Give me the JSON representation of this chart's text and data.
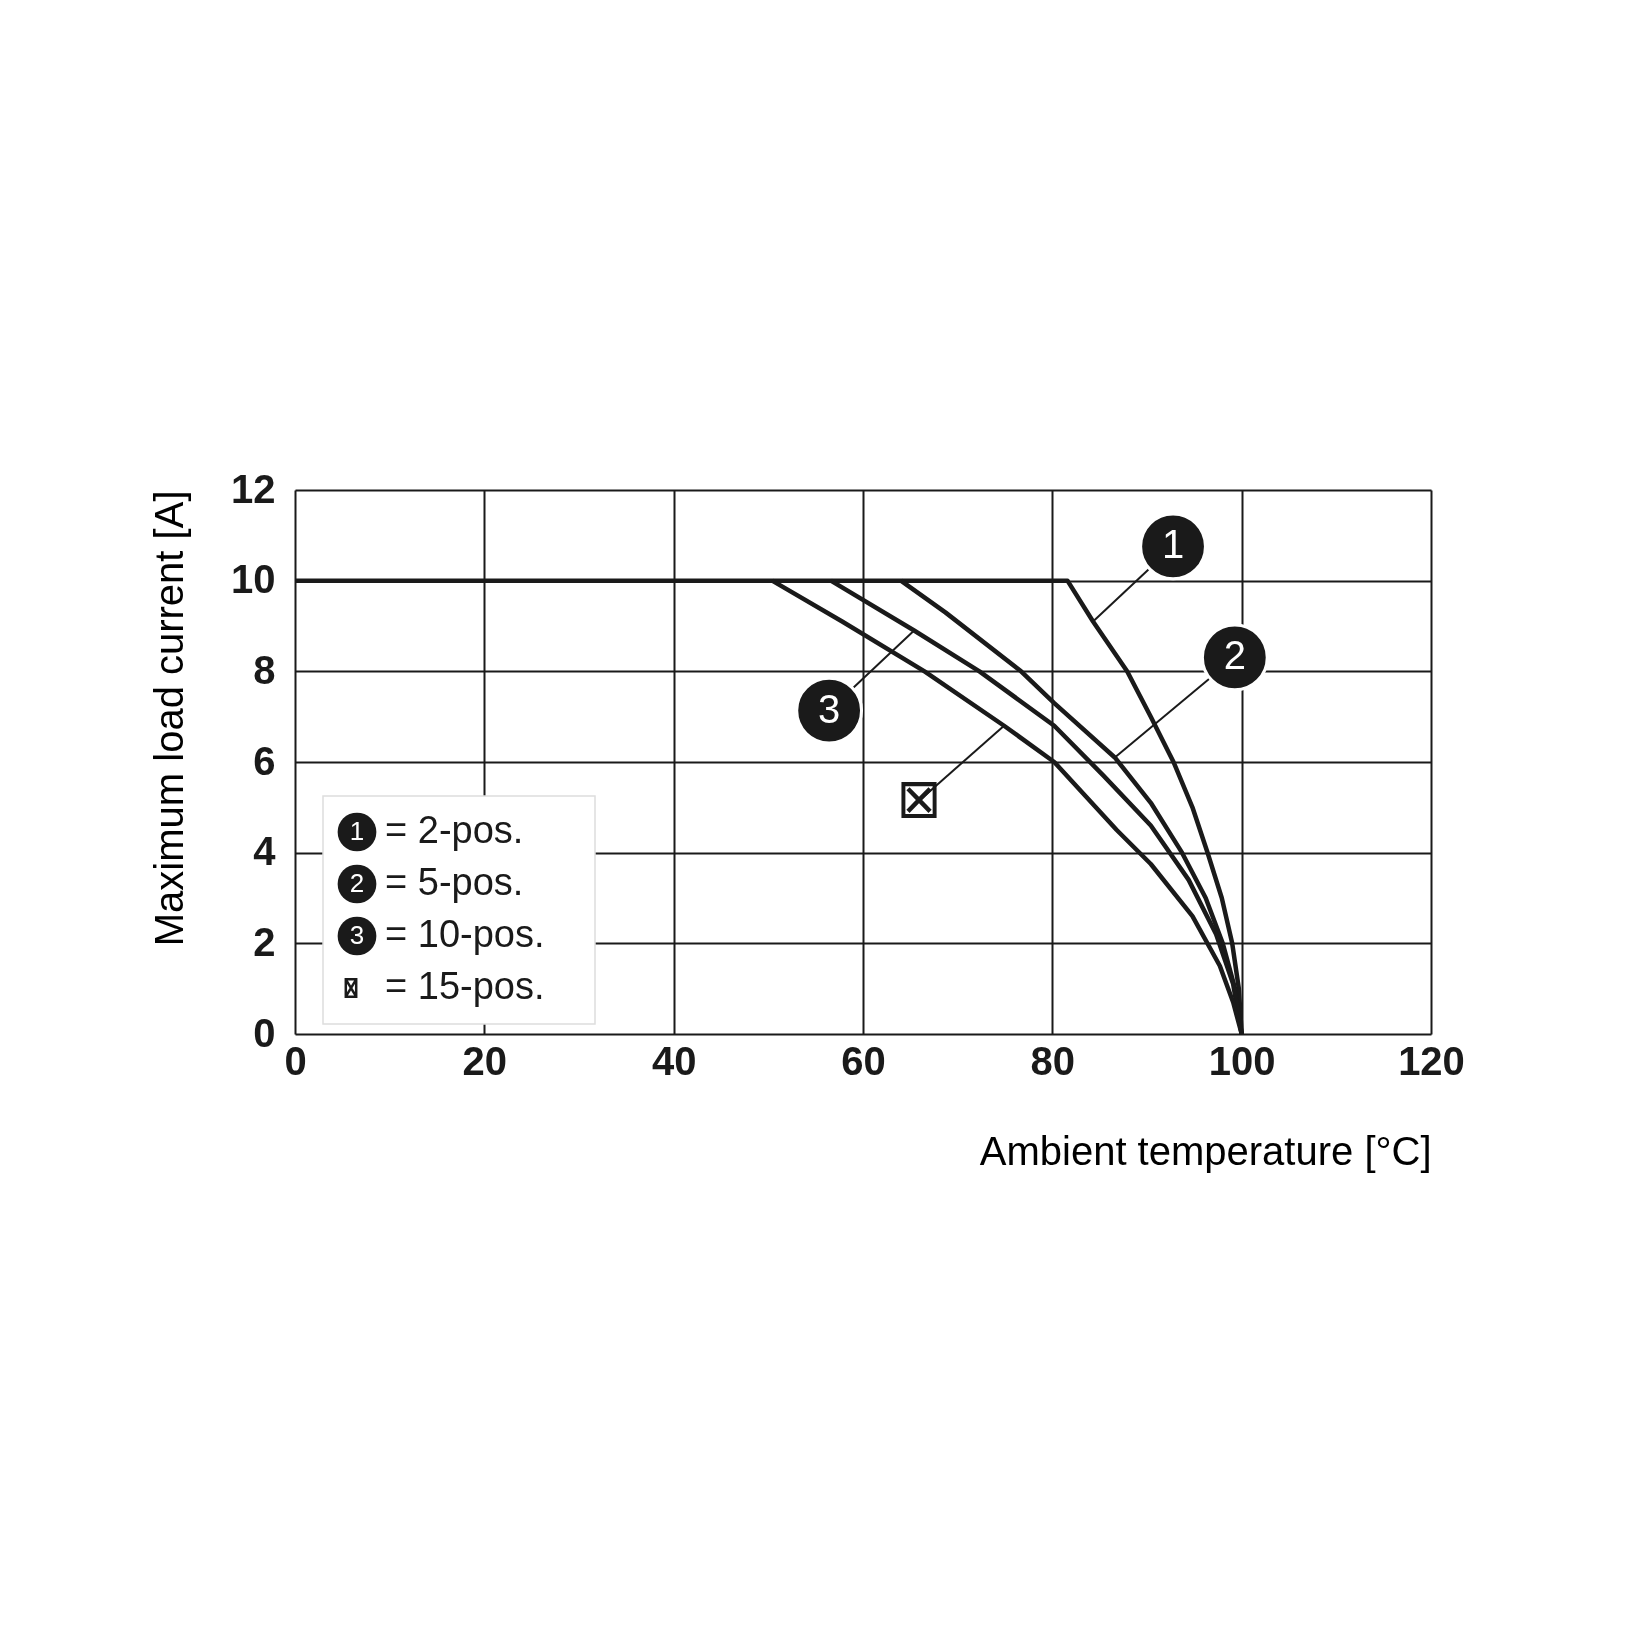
{
  "chart_data": {
    "type": "line",
    "xlabel": "Ambient temperature [°C]",
    "ylabel": "Maximum load current [A]",
    "xlim": [
      0,
      120
    ],
    "xticks": [
      0,
      20,
      40,
      60,
      80,
      100,
      120
    ],
    "ylim": [
      0,
      12
    ],
    "yticks": [
      0,
      2,
      4,
      6,
      8,
      10,
      12
    ],
    "grid": true,
    "legend": "bottom left",
    "line_style": "solid",
    "series": [
      {
        "name": "= 2-pos.",
        "color": "#1a1a1a",
        "x": [
          0,
          81.6,
          84.3,
          87.9,
          90.4,
          92.8,
          94.8,
          96.4,
          97.9,
          99.0,
          99.7,
          100
        ],
        "values": [
          10,
          10,
          9.1,
          8.0,
          7.0,
          6.0,
          5.0,
          4.0,
          3.0,
          2.0,
          1.0,
          0
        ]
      },
      {
        "name": "= 5-pos.",
        "color": "#1a1a1a",
        "x": [
          64,
          68.7,
          76.7,
          80.2,
          86.6,
          90.4,
          93.7,
          96.2,
          98,
          99.3,
          100
        ],
        "values": [
          10,
          9.3,
          8.0,
          7.3,
          6.1,
          5.1,
          4.0,
          3.0,
          2.0,
          1.0,
          0
        ]
      },
      {
        "name": "= 10-pos.",
        "color": "#1a1a1a",
        "x": [
          56.6,
          65.4,
          72.3,
          80.2,
          85.4,
          90.4,
          94.4,
          97.3,
          99.1,
          100
        ],
        "values": [
          10,
          8.9,
          8.0,
          6.8,
          5.7,
          4.6,
          3.4,
          2.2,
          1.1,
          0
        ]
      },
      {
        "name": "= 15-pos.",
        "color": "#1a1a1a",
        "x": [
          50.4,
          57.8,
          66.5,
          74.9,
          80.2,
          86.8,
          90.4,
          94.8,
          97.7,
          99.1,
          100
        ],
        "values": [
          10,
          9.1,
          8.0,
          6.8,
          6.0,
          4.5,
          3.75,
          2.6,
          1.5,
          0.7,
          0
        ]
      }
    ],
    "annotations": [
      {
        "text": "1",
        "x": 84.3,
        "y": 9.1
      },
      {
        "text": "2",
        "x": 86.6,
        "y": 6.1
      },
      {
        "text": "3",
        "x": 65.4,
        "y": 8.9
      },
      {
        "text": "⊠",
        "x": 74.9,
        "y": 6.8
      }
    ]
  }
}
